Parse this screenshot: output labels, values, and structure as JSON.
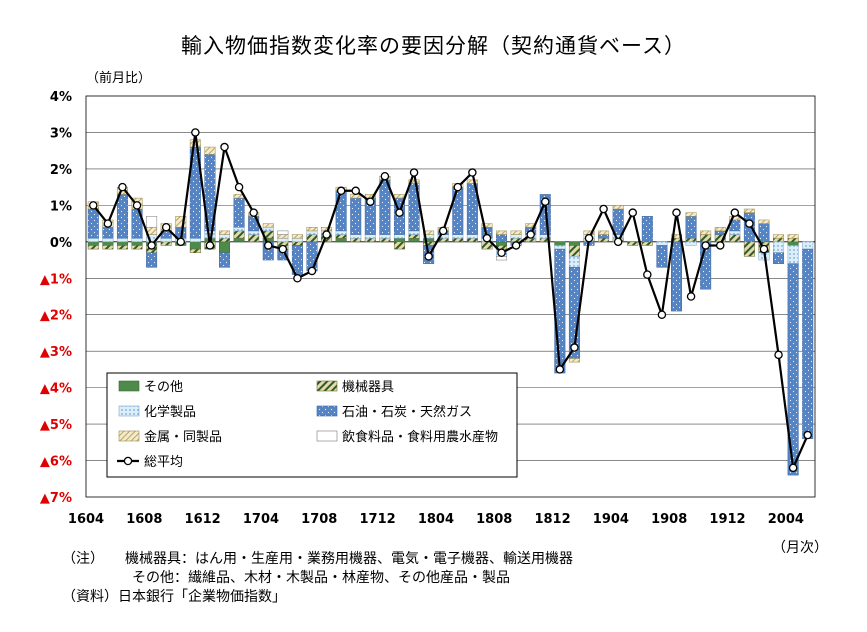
{
  "title": "輸入物価指数変化率の要因分解（契約通貨ベース）",
  "ylabel": "（前月比）",
  "xunit": "（月次）",
  "notes": [
    "（注）　　機械器具：はん用・生産用・業務用機器、電気・電子機器、輸送用機器",
    "　　　　　その他：繊維品、木材・木製品・林産物、その他産品・製品",
    "（資料）日本銀行「企業物価指数」"
  ],
  "colors": {
    "other": "#4e8a4a",
    "machinery": "#d4c488",
    "chemical": "#dbeef9",
    "oil": "#5584c4",
    "metal": "#e8d9a0",
    "food": "#ffffff",
    "avg": "#000000",
    "negative_label": "#e00000",
    "grid": "#000000"
  },
  "chart_data": {
    "type": "bar",
    "stacked": true,
    "ylim": [
      -7,
      4
    ],
    "yticks": [
      {
        "value": 4,
        "label": "4%"
      },
      {
        "value": 3,
        "label": "3%"
      },
      {
        "value": 2,
        "label": "2%"
      },
      {
        "value": 1,
        "label": "1%"
      },
      {
        "value": 0,
        "label": "0%"
      },
      {
        "value": -1,
        "label": "▲1%"
      },
      {
        "value": -2,
        "label": "▲2%"
      },
      {
        "value": -3,
        "label": "▲3%"
      },
      {
        "value": -4,
        "label": "▲4%"
      },
      {
        "value": -5,
        "label": "▲5%"
      },
      {
        "value": -6,
        "label": "▲6%"
      },
      {
        "value": -7,
        "label": "▲7%"
      }
    ],
    "xtick_labels": [
      "1604",
      "1608",
      "1612",
      "1704",
      "1708",
      "1712",
      "1804",
      "1808",
      "1812",
      "1904",
      "1908",
      "1912",
      "2004"
    ],
    "categories": [
      "1604",
      "1605",
      "1606",
      "1607",
      "1608",
      "1609",
      "1610",
      "1611",
      "1612",
      "1701",
      "1702",
      "1703",
      "1704",
      "1705",
      "1706",
      "1707",
      "1708",
      "1709",
      "1710",
      "1711",
      "1712",
      "1801",
      "1802",
      "1803",
      "1804",
      "1805",
      "1806",
      "1807",
      "1808",
      "1809",
      "1810",
      "1811",
      "1812",
      "1901",
      "1902",
      "1903",
      "1904",
      "1905",
      "1906",
      "1907",
      "1908",
      "1909",
      "1910",
      "1911",
      "1912",
      "2001",
      "2002",
      "2003",
      "2004",
      "2005"
    ],
    "grid": true,
    "legend_position": "bottom-left",
    "series": [
      {
        "name": "その他",
        "key": "other",
        "values": [
          -0.1,
          -0.1,
          -0.1,
          -0.1,
          -0.1,
          0.0,
          -0.1,
          -0.2,
          0.1,
          -0.3,
          0.1,
          0.0,
          0.1,
          0.0,
          0.0,
          0.0,
          0.0,
          0.1,
          0.0,
          0.0,
          0.0,
          0.1,
          0.1,
          0.1,
          0.0,
          0.0,
          0.0,
          0.0,
          -0.1,
          0.0,
          0.0,
          0.0,
          -0.1,
          -0.1,
          0.0,
          0.0,
          0.0,
          0.0,
          0.0,
          0.0,
          0.0,
          0.0,
          0.0,
          0.0,
          0.0,
          0.0,
          0.0,
          0.0,
          -0.1,
          0.0
        ]
      },
      {
        "name": "機械器具",
        "key": "machinery",
        "values": [
          -0.1,
          -0.1,
          -0.1,
          -0.1,
          -0.2,
          -0.1,
          0.0,
          -0.1,
          -0.2,
          0.1,
          0.2,
          0.2,
          0.2,
          -0.2,
          -0.1,
          0.2,
          0.2,
          0.1,
          0.1,
          0.1,
          0.1,
          -0.2,
          0.1,
          -0.1,
          0.1,
          0.1,
          0.1,
          -0.2,
          -0.1,
          0.1,
          0.1,
          0.1,
          0.0,
          -0.3,
          0.1,
          0.1,
          0.1,
          -0.1,
          -0.1,
          0.0,
          0.1,
          0.1,
          0.2,
          0.2,
          0.2,
          -0.4,
          -0.3,
          0.1,
          0.1,
          0.0
        ]
      },
      {
        "name": "化学製品",
        "key": "chemical",
        "values": [
          0.1,
          0.1,
          0.1,
          0.1,
          0.2,
          0.1,
          0.1,
          0.1,
          0.2,
          0.1,
          0.1,
          0.1,
          0.1,
          0.1,
          0.1,
          0.1,
          0.1,
          0.1,
          0.1,
          0.1,
          0.1,
          0.1,
          0.1,
          0.1,
          0.1,
          0.1,
          0.1,
          0.1,
          -0.2,
          0.1,
          0.1,
          0.1,
          -0.1,
          -0.3,
          0.1,
          0.0,
          0.1,
          0.0,
          0.0,
          -0.1,
          0.0,
          -0.1,
          0.0,
          0.0,
          0.1,
          0.0,
          -0.2,
          -0.3,
          -0.5,
          -0.2
        ]
      },
      {
        "name": "石油・石炭・天然ガス",
        "key": "oil",
        "values": [
          0.8,
          0.3,
          1.2,
          0.8,
          -0.4,
          0.2,
          0.3,
          2.5,
          2.1,
          -0.4,
          0.8,
          0.4,
          -0.5,
          -0.3,
          -0.8,
          -0.8,
          0.0,
          1.1,
          1.0,
          1.0,
          1.5,
          1.0,
          1.3,
          -0.5,
          0.1,
          1.3,
          1.4,
          0.3,
          0.2,
          -0.1,
          0.2,
          1.1,
          -3.4,
          -2.5,
          -0.1,
          0.1,
          0.7,
          0.0,
          0.7,
          -0.6,
          -1.9,
          0.6,
          -1.3,
          0.1,
          0.3,
          0.8,
          0.5,
          -0.3,
          -5.8,
          -5.2
        ]
      },
      {
        "name": "金属・同製品",
        "key": "metal",
        "values": [
          0.2,
          0.2,
          0.2,
          0.3,
          0.2,
          0.2,
          0.3,
          0.2,
          0.2,
          0.1,
          0.1,
          0.1,
          0.1,
          0.1,
          0.1,
          0.1,
          0.1,
          0.1,
          0.1,
          0.1,
          0.1,
          0.1,
          0.1,
          0.1,
          0.1,
          0.1,
          0.1,
          0.1,
          0.1,
          0.1,
          0.1,
          0.0,
          0.0,
          -0.1,
          0.1,
          0.1,
          0.1,
          0.0,
          0.0,
          0.0,
          0.1,
          0.1,
          0.1,
          0.1,
          0.1,
          0.1,
          0.1,
          0.1,
          0.1,
          0.0
        ]
      },
      {
        "name": "飲食料品・食料用農水産物",
        "key": "food",
        "values": [
          0.0,
          0.0,
          0.0,
          0.0,
          0.3,
          0.0,
          0.0,
          0.0,
          0.0,
          0.0,
          0.0,
          0.0,
          0.0,
          0.1,
          0.0,
          0.0,
          0.0,
          0.0,
          0.0,
          0.0,
          0.0,
          0.0,
          0.0,
          0.0,
          0.0,
          0.0,
          0.0,
          0.0,
          -0.1,
          0.0,
          0.0,
          0.0,
          0.0,
          0.0,
          0.0,
          0.0,
          0.0,
          0.0,
          0.0,
          0.0,
          0.0,
          0.0,
          0.0,
          0.0,
          0.0,
          0.0,
          0.0,
          0.0,
          0.0,
          0.0
        ]
      },
      {
        "name": "総平均",
        "key": "avg",
        "type": "line",
        "values": [
          1.0,
          0.5,
          1.5,
          1.0,
          -0.1,
          0.4,
          0.0,
          3.0,
          -0.1,
          2.6,
          1.5,
          0.8,
          -0.1,
          -0.2,
          -1.0,
          -0.8,
          0.2,
          1.4,
          1.4,
          1.1,
          1.8,
          0.8,
          1.9,
          -0.4,
          0.3,
          1.5,
          1.9,
          0.1,
          -0.3,
          -0.1,
          0.2,
          1.1,
          -3.5,
          -2.9,
          0.1,
          0.9,
          0.0,
          0.8,
          -0.9,
          -2.0,
          0.8,
          -1.5,
          -0.1,
          -0.1,
          0.8,
          0.5,
          -0.2,
          -3.1,
          -6.2,
          -5.3
        ]
      }
    ]
  }
}
